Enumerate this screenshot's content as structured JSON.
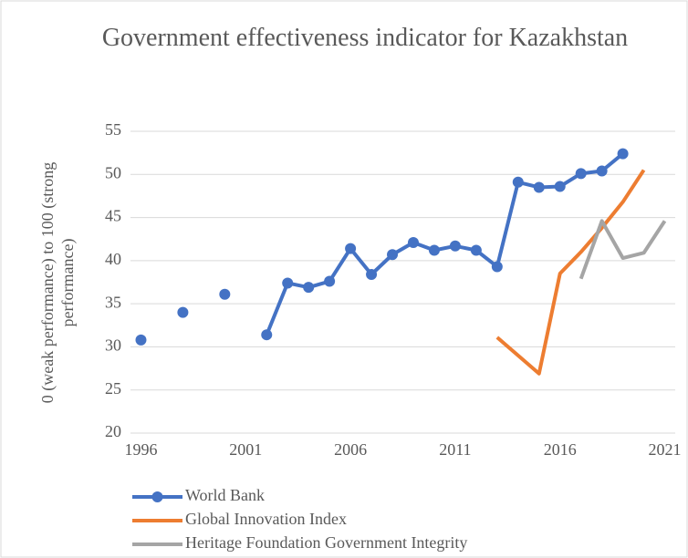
{
  "chart_data": {
    "type": "line",
    "title": "Government effectiveness indicator for Kazakhstan",
    "y_label": "0 (weak performance) to 100 (strong performance)",
    "x": [
      1996,
      1997,
      1998,
      1999,
      2000,
      2001,
      2002,
      2003,
      2004,
      2005,
      2006,
      2007,
      2008,
      2009,
      2010,
      2011,
      2012,
      2013,
      2014,
      2015,
      2016,
      2017,
      2018,
      2019,
      2020,
      2021
    ],
    "series": [
      {
        "name": "World Bank",
        "color": "#4472c4",
        "marker": true,
        "values": [
          30.8,
          null,
          34.0,
          null,
          36.1,
          null,
          31.4,
          37.4,
          36.9,
          37.6,
          41.4,
          38.4,
          40.7,
          42.1,
          41.2,
          41.7,
          41.2,
          39.3,
          49.1,
          48.5,
          48.6,
          50.1,
          50.4,
          52.4,
          null,
          null
        ]
      },
      {
        "name": "Global Innovation Index",
        "color": "#ed7d31",
        "marker": false,
        "values": [
          null,
          null,
          null,
          null,
          null,
          null,
          null,
          null,
          null,
          null,
          null,
          null,
          null,
          null,
          null,
          null,
          null,
          31.1,
          29.0,
          26.9,
          38.5,
          41.0,
          43.8,
          46.8,
          50.5,
          null
        ]
      },
      {
        "name": "Heritage Foundation Government Integrity",
        "color": "#a5a5a5",
        "marker": false,
        "values": [
          null,
          null,
          null,
          null,
          null,
          null,
          null,
          null,
          null,
          null,
          null,
          null,
          null,
          null,
          null,
          null,
          null,
          null,
          null,
          null,
          null,
          37.9,
          44.6,
          40.3,
          40.9,
          44.6
        ]
      }
    ],
    "xlim": [
      1995.5,
      2021.5
    ],
    "xticks": [
      1996,
      2001,
      2006,
      2011,
      2016,
      2021
    ],
    "ylim": [
      20,
      55
    ],
    "yticks": [
      20,
      25,
      30,
      35,
      40,
      45,
      50,
      55
    ],
    "grid": true,
    "legend": "bottom"
  }
}
